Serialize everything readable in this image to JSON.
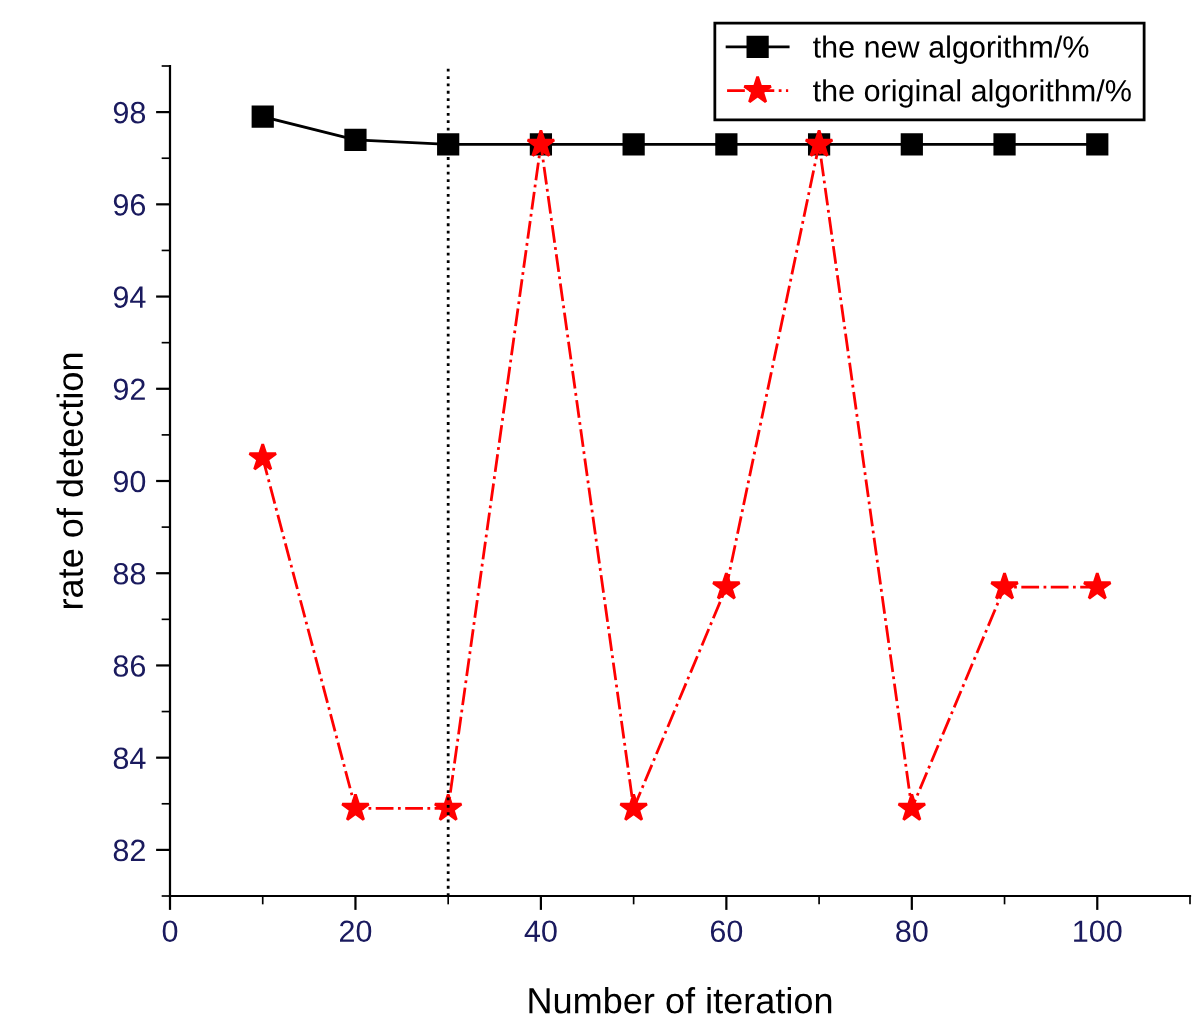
{
  "chart_data": {
    "type": "line",
    "xlabel": "Number of iteration",
    "ylabel": "rate of detection",
    "x": [
      10,
      20,
      30,
      40,
      50,
      60,
      70,
      80,
      90,
      100
    ],
    "series": [
      {
        "name": "the new algorithm/%",
        "color": "#000000",
        "marker": "square",
        "line_style": "solid",
        "values": [
          97.9,
          97.4,
          97.3,
          97.3,
          97.3,
          97.3,
          97.3,
          97.3,
          97.3,
          97.3
        ]
      },
      {
        "name": "the original algorithm/%",
        "color": "#ff0000",
        "marker": "star",
        "line_style": "dashdot",
        "values": [
          90.5,
          82.9,
          82.9,
          97.3,
          82.9,
          87.7,
          97.3,
          82.9,
          87.7,
          87.7
        ]
      }
    ],
    "xlim": [
      0,
      110
    ],
    "xticks": [
      0,
      20,
      40,
      60,
      80,
      100
    ],
    "ylim": [
      81,
      99
    ],
    "yticks": [
      82,
      84,
      86,
      88,
      90,
      92,
      94,
      96,
      98
    ],
    "ref_lines": [
      {
        "axis": "x",
        "value": 30,
        "color": "#000000",
        "line_style": "dotted"
      }
    ],
    "legend": "top right",
    "grid": false
  }
}
